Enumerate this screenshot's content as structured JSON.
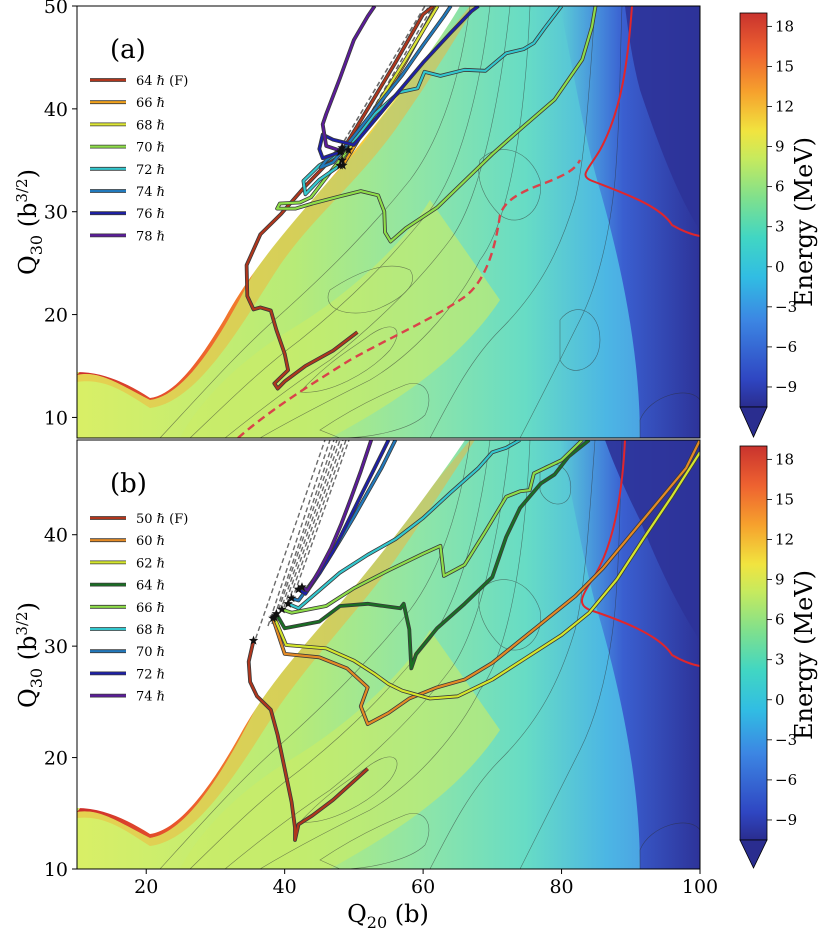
{
  "chart_data": [
    {
      "panel": "(a)",
      "type": "line",
      "xlim": [
        10,
        100
      ],
      "ylim": [
        8,
        50
      ],
      "xlabel": "",
      "ylabel": "Q",
      "ylabel_sub": "30",
      "ylabel_unit_open": " (b",
      "ylabel_unit_sup": "3/2",
      "ylabel_unit_close": ")",
      "y_ticks": [
        10,
        20,
        30,
        40,
        50
      ],
      "legend_position": "upper-left",
      "colorbar": {
        "title": "Energy (MeV)",
        "range": [
          -10.5,
          19
        ],
        "ticks": [
          18,
          15,
          12,
          9,
          6,
          3,
          0,
          -3,
          -6,
          -9
        ],
        "tick_labels": [
          "18",
          "15",
          "12",
          "9",
          "6",
          "3",
          "0",
          "−3",
          "−6",
          "−9"
        ]
      },
      "series": [
        {
          "name": "64 ℏ (F)",
          "color": "#b0361d",
          "points": [
            [
              50.5,
              18.3
            ],
            [
              47,
              16.5
            ],
            [
              43,
              15
            ],
            [
              40,
              13.5
            ],
            [
              39,
              12.8
            ],
            [
              38.5,
              13.3
            ],
            [
              40.5,
              14.6
            ],
            [
              40,
              16.2
            ],
            [
              38.8,
              18.5
            ],
            [
              38,
              20.4
            ],
            [
              36.5,
              20.7
            ],
            [
              35.5,
              20.5
            ],
            [
              34.6,
              21.8
            ],
            [
              34.5,
              24.8
            ],
            [
              36.5,
              27.8
            ],
            [
              39.5,
              29.8
            ],
            [
              43,
              32.5
            ],
            [
              46,
              34.6
            ],
            [
              48.2,
              35.8
            ],
            [
              52,
              40
            ],
            [
              56,
              44.5
            ],
            [
              60,
              49.2
            ],
            [
              61.5,
              50
            ]
          ]
        },
        {
          "name": "66 ℏ",
          "color": "#f2a21c",
          "points": [
            [
              48.4,
              34.5
            ],
            [
              53,
              39.6
            ],
            [
              57.5,
              44.6
            ],
            [
              61.9,
              50
            ]
          ]
        },
        {
          "name": "68 ℏ",
          "color": "#dde634",
          "points": [
            [
              48.3,
              35
            ],
            [
              52.8,
              39.8
            ],
            [
              57.4,
              44.7
            ],
            [
              62.1,
              50
            ]
          ]
        },
        {
          "name": "70 ℏ",
          "color": "#8edd49",
          "points": [
            [
              49.2,
              36
            ],
            [
              47,
              34.2
            ],
            [
              43.8,
              31.4
            ],
            [
              42.2,
              30.9
            ],
            [
              39.3,
              30.8
            ],
            [
              38.9,
              30.3
            ],
            [
              41.6,
              30.3
            ],
            [
              44,
              30.8
            ],
            [
              48,
              31.5
            ],
            [
              51,
              32
            ],
            [
              53.5,
              31.6
            ],
            [
              54.4,
              30
            ],
            [
              54.5,
              28
            ],
            [
              55.3,
              27.1
            ],
            [
              57.5,
              28.4
            ],
            [
              62,
              30.4
            ],
            [
              66,
              33
            ],
            [
              70,
              35.6
            ],
            [
              74,
              38
            ],
            [
              79,
              40.9
            ],
            [
              83,
              44.8
            ],
            [
              84.4,
              48
            ],
            [
              84.9,
              50
            ]
          ]
        },
        {
          "name": "72 ℏ",
          "color": "#33c7ce",
          "points": [
            [
              48,
              34.5
            ],
            [
              45,
              33.1
            ],
            [
              43,
              31.7
            ],
            [
              42.7,
              33
            ],
            [
              45,
              34.5
            ],
            [
              48.2,
              35.8
            ],
            [
              50.5,
              37.3
            ],
            [
              53,
              39.5
            ],
            [
              56.5,
              41.6
            ],
            [
              59.2,
              42
            ],
            [
              60.2,
              43.6
            ],
            [
              62.5,
              43.2
            ],
            [
              66,
              43.8
            ],
            [
              69,
              43.7
            ],
            [
              72,
              45.4
            ],
            [
              74.5,
              45.8
            ],
            [
              76,
              46.4
            ],
            [
              77.5,
              47.8
            ],
            [
              80,
              50
            ]
          ]
        },
        {
          "name": "74 ℏ",
          "color": "#2179bc",
          "points": [
            [
              48.3,
              36.2
            ],
            [
              46,
              35
            ],
            [
              45.2,
              34.3
            ],
            [
              47,
              34.8
            ],
            [
              49,
              36.5
            ],
            [
              51,
              38.2
            ],
            [
              54,
              40.8
            ],
            [
              57,
              43.3
            ],
            [
              60,
              46.2
            ],
            [
              63,
              49
            ],
            [
              64,
              50
            ]
          ]
        },
        {
          "name": "76 ℏ",
          "color": "#1d1fa7",
          "points": [
            [
              48,
              35.8
            ],
            [
              45.5,
              35.2
            ],
            [
              45,
              36.1
            ],
            [
              45.5,
              37.5
            ],
            [
              47,
              37
            ],
            [
              50,
              36.5
            ],
            [
              55,
              40.5
            ],
            [
              60,
              44.5
            ],
            [
              64,
              47.4
            ],
            [
              67,
              49.5
            ],
            [
              68,
              50
            ]
          ]
        },
        {
          "name": "78 ℏ",
          "color": "#5b1b9a",
          "points": [
            [
              48.2,
              35.9
            ],
            [
              46,
              36.4
            ],
            [
              45.5,
              38.5
            ],
            [
              46,
              39.5
            ],
            [
              48,
              43
            ],
            [
              50,
              46.7
            ],
            [
              52,
              49
            ],
            [
              53,
              50
            ]
          ]
        }
      ]
    },
    {
      "panel": "(b)",
      "type": "line",
      "xlim": [
        10,
        100
      ],
      "ylim": [
        10,
        48.5
      ],
      "xlabel": "Q",
      "xlabel_sub": "20",
      "xlabel_unit": " (b)",
      "x_ticks": [
        20,
        40,
        60,
        80,
        100
      ],
      "ylabel": "Q",
      "ylabel_sub": "30",
      "ylabel_unit_open": " (b",
      "ylabel_unit_sup": "3/2",
      "ylabel_unit_close": ")",
      "y_ticks": [
        10,
        20,
        30,
        40
      ],
      "legend_position": "upper-left",
      "colorbar": {
        "title": "Energy (MeV)",
        "range": [
          -10.5,
          19
        ],
        "ticks": [
          18,
          15,
          12,
          9,
          6,
          3,
          0,
          -3,
          -6,
          -9
        ],
        "tick_labels": [
          "18",
          "15",
          "12",
          "9",
          "6",
          "3",
          "0",
          "−3",
          "−6",
          "−9"
        ]
      },
      "series": [
        {
          "name": "50 ℏ (F)",
          "color": "#b0361d",
          "points": [
            [
              52,
              19
            ],
            [
              47,
              16.2
            ],
            [
              44,
              14.8
            ],
            [
              42,
              14
            ],
            [
              41.5,
              12.6
            ],
            [
              41.5,
              13.7
            ],
            [
              41,
              16
            ],
            [
              40,
              19
            ],
            [
              39,
              22
            ],
            [
              38,
              24.3
            ],
            [
              36,
              25.5
            ],
            [
              35,
              26.8
            ],
            [
              34.8,
              28.6
            ],
            [
              35.5,
              30.5
            ]
          ]
        },
        {
          "name": "60 ℏ",
          "color": "#e48a25",
          "points": [
            [
              38.3,
              32.5
            ],
            [
              40,
              29.3
            ],
            [
              45,
              29
            ],
            [
              49,
              28
            ],
            [
              52,
              26.3
            ],
            [
              51,
              24.6
            ],
            [
              52,
              23
            ],
            [
              55,
              24
            ],
            [
              58,
              25.3
            ],
            [
              62,
              26.3
            ],
            [
              66,
              27
            ],
            [
              70,
              28.5
            ],
            [
              74,
              30.5
            ],
            [
              78,
              32.5
            ],
            [
              82,
              34.5
            ],
            [
              86,
              37
            ],
            [
              90,
              40
            ],
            [
              94,
              43
            ],
            [
              98,
              46
            ],
            [
              100,
              48.5
            ]
          ]
        },
        {
          "name": "62 ℏ",
          "color": "#d4e62c",
          "points": [
            [
              38.5,
              32.6
            ],
            [
              40.2,
              30.1
            ],
            [
              46,
              29.8
            ],
            [
              50,
              28.7
            ],
            [
              53,
              27.5
            ],
            [
              55,
              26.6
            ],
            [
              57,
              26
            ],
            [
              61,
              25.3
            ],
            [
              65,
              25.5
            ],
            [
              70,
              27
            ],
            [
              75,
              29
            ],
            [
              80,
              31
            ],
            [
              84,
              33
            ],
            [
              88,
              36
            ],
            [
              92,
              39.8
            ],
            [
              96,
              43.5
            ],
            [
              100,
              47.4
            ]
          ]
        },
        {
          "name": "64 ℏ",
          "color": "#1a6e24",
          "points": [
            [
              38.8,
              32.9
            ],
            [
              40,
              31.6
            ],
            [
              45,
              32.2
            ],
            [
              48,
              33.6
            ],
            [
              52,
              33.8
            ],
            [
              56.7,
              33.4
            ],
            [
              57.2,
              33.8
            ],
            [
              58,
              31.5
            ],
            [
              58.3,
              28
            ],
            [
              59,
              29.3
            ],
            [
              62,
              31.6
            ],
            [
              66,
              33.8
            ],
            [
              70,
              36.2
            ],
            [
              72,
              39.8
            ],
            [
              74,
              42.4
            ],
            [
              77,
              44.6
            ],
            [
              79,
              45.4
            ],
            [
              81,
              47
            ],
            [
              84,
              48.5
            ]
          ]
        },
        {
          "name": "66 ℏ",
          "color": "#8edd49",
          "points": [
            [
              39.6,
              33.3
            ],
            [
              41,
              33
            ],
            [
              46,
              33.6
            ],
            [
              50,
              35.2
            ],
            [
              55,
              36.8
            ],
            [
              60,
              38.3
            ],
            [
              62.5,
              39
            ],
            [
              63,
              36.3
            ],
            [
              66,
              37.3
            ],
            [
              69,
              40.3
            ],
            [
              72,
              43.4
            ],
            [
              74,
              43.9
            ],
            [
              75.4,
              44
            ],
            [
              76,
              45.5
            ],
            [
              80,
              46.7
            ],
            [
              83,
              48.5
            ]
          ]
        },
        {
          "name": "68 ℏ",
          "color": "#33c7ce",
          "points": [
            [
              40.5,
              33.8
            ],
            [
              42,
              33.4
            ],
            [
              45,
              35
            ],
            [
              48,
              36.6
            ],
            [
              52,
              38.2
            ],
            [
              56,
              39.6
            ],
            [
              60,
              41.5
            ],
            [
              64,
              43.8
            ],
            [
              68,
              46
            ],
            [
              70,
              47.4
            ],
            [
              72,
              47.8
            ],
            [
              74,
              48.5
            ]
          ]
        },
        {
          "name": "70 ℏ",
          "color": "#2179bc",
          "points": [
            [
              41,
              34.3
            ],
            [
              42,
              34.1
            ],
            [
              44,
              35.8
            ],
            [
              46,
              37.5
            ],
            [
              48,
              39.5
            ],
            [
              50,
              41.6
            ],
            [
              52,
              43.8
            ],
            [
              54,
              46
            ],
            [
              56,
              48.5
            ]
          ]
        },
        {
          "name": "72 ℏ",
          "color": "#1d1fa7",
          "points": [
            [
              42,
              35.1
            ],
            [
              43,
              34.7
            ],
            [
              45,
              36.5
            ],
            [
              47,
              38.5
            ],
            [
              49,
              41
            ],
            [
              51,
              43.5
            ],
            [
              53,
              46
            ],
            [
              55,
              48.5
            ]
          ]
        },
        {
          "name": "74 ℏ",
          "color": "#5b1b9a",
          "points": [
            [
              42.5,
              35.3
            ],
            [
              43.3,
              35
            ],
            [
              45,
              36.8
            ],
            [
              46.7,
              38.8
            ],
            [
              48.2,
              41
            ],
            [
              49.6,
              43.3
            ],
            [
              51,
              45.7
            ],
            [
              52.5,
              48.5
            ]
          ]
        }
      ]
    }
  ]
}
